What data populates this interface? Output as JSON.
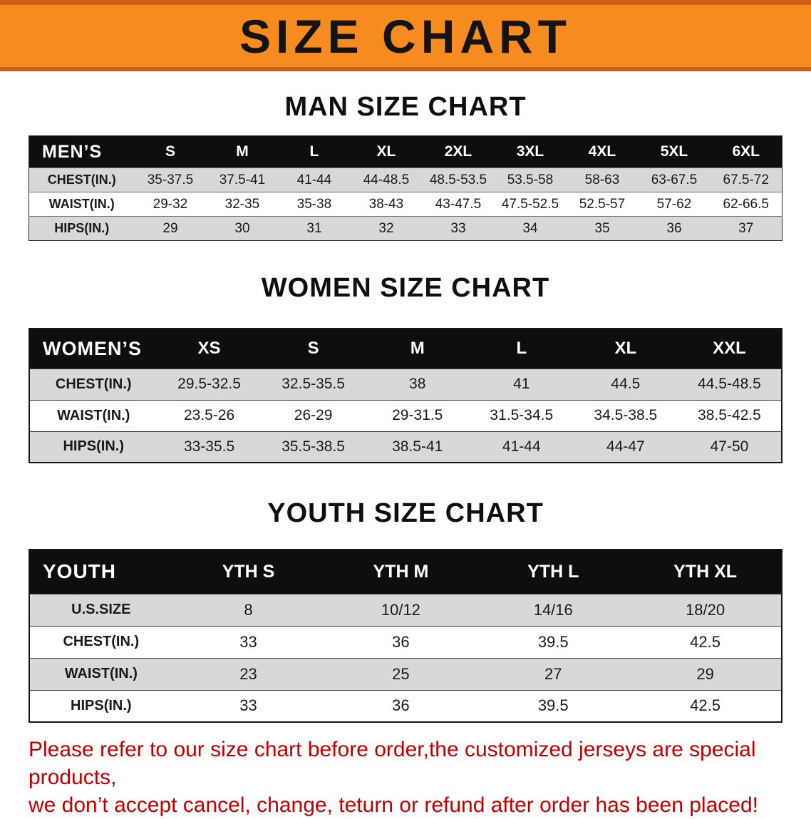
{
  "colors": {
    "banner_bg": "#f68b1f",
    "banner_edge": "#cf5f14",
    "table_header_bg": "#0e0e0e",
    "row_shade": "#d8d8d8",
    "disclaimer_text": "#c00000"
  },
  "banner": {
    "title": "SIZE CHART"
  },
  "sections": [
    {
      "id": "men",
      "heading": "MAN SIZE CHART",
      "table": {
        "header": [
          "MEN’S",
          "S",
          "M",
          "L",
          "XL",
          "2XL",
          "3XL",
          "4XL",
          "5XL",
          "6XL"
        ],
        "rows": [
          [
            "CHEST(IN.)",
            "35-37.5",
            "37.5-41",
            "41-44",
            "44-48.5",
            "48.5-53.5",
            "53.5-58",
            "58-63",
            "63-67.5",
            "67.5-72"
          ],
          [
            "WAIST(IN.)",
            "29-32",
            "32-35",
            "35-38",
            "38-43",
            "43-47.5",
            "47.5-52.5",
            "52.5-57",
            "57-62",
            "62-66.5"
          ],
          [
            "HIPS(IN.)",
            "29",
            "30",
            "31",
            "32",
            "33",
            "34",
            "35",
            "36",
            "37"
          ]
        ]
      }
    },
    {
      "id": "women",
      "heading": "WOMEN SIZE CHART",
      "table": {
        "header": [
          "WOMEN’S",
          "XS",
          "S",
          "M",
          "L",
          "XL",
          "XXL"
        ],
        "rows": [
          [
            "CHEST(IN.)",
            "29.5-32.5",
            "32.5-35.5",
            "38",
            "41",
            "44.5",
            "44.5-48.5"
          ],
          [
            "WAIST(IN.)",
            "23.5-26",
            "26-29",
            "29-31.5",
            "31.5-34.5",
            "34.5-38.5",
            "38.5-42.5"
          ],
          [
            "HIPS(IN.)",
            "33-35.5",
            "35.5-38.5",
            "38.5-41",
            "41-44",
            "44-47",
            "47-50"
          ]
        ]
      }
    },
    {
      "id": "youth",
      "heading": "YOUTH SIZE CHART",
      "table": {
        "header": [
          "YOUTH",
          "YTH S",
          "YTH M",
          "YTH L",
          "YTH XL"
        ],
        "rows": [
          [
            "U.S.SIZE",
            "8",
            "10/12",
            "14/16",
            "18/20"
          ],
          [
            "CHEST(IN.)",
            "33",
            "36",
            "39.5",
            "42.5"
          ],
          [
            "WAIST(IN.)",
            "23",
            "25",
            "27",
            "29"
          ],
          [
            "HIPS(IN.)",
            "33",
            "36",
            "39.5",
            "42.5"
          ]
        ]
      }
    }
  ],
  "disclaimer": {
    "line1": "Please refer to our size chart before order,the customized jerseys are special products,",
    "line2": "we don’t accept cancel, change, teturn or refund after order has been placed!"
  }
}
